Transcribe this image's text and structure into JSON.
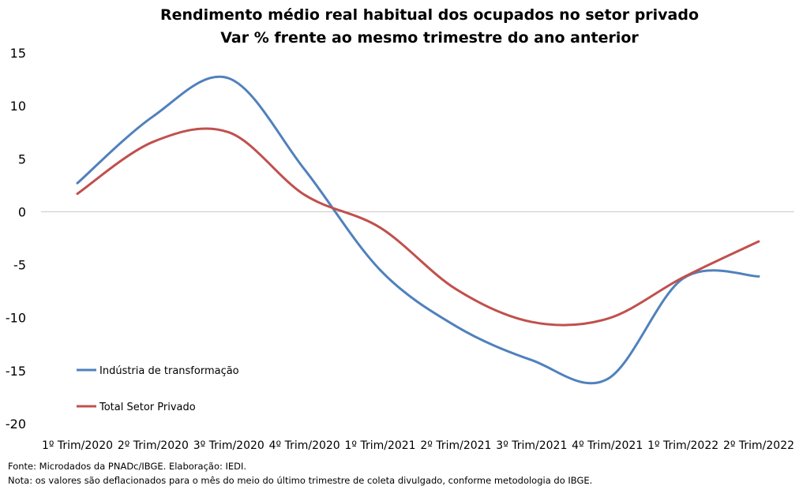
{
  "chart_data": {
    "type": "line",
    "title": "Rendimento médio real habitual dos ocupados no setor privado",
    "subtitle": "Var %  frente ao mesmo trimestre do ano anterior",
    "categories": [
      "1º Trim/2020",
      "2º Trim/2020",
      "3º Trim/2020",
      "4º Trim/2020",
      "1º Trim/2021",
      "2º Trim/2021",
      "3º Trim/2021",
      "4º Trim/2021",
      "1º Trim/2022",
      "2º Trim/2022"
    ],
    "y_ticks": [
      "15",
      "10",
      "5",
      "0",
      "-5",
      "-10",
      "-15",
      "-20"
    ],
    "ylim": [
      -20,
      15
    ],
    "grid": false,
    "legend_position": "lower-left",
    "series": [
      {
        "name": "Indústria de transformação",
        "color": "#4F81BD",
        "values": [
          2.7,
          9.0,
          12.6,
          4.0,
          -5.5,
          -10.8,
          -14.0,
          -15.8,
          -6.3,
          -6.1
        ]
      },
      {
        "name": "Total Setor Privado",
        "color": "#C0504D",
        "values": [
          1.7,
          6.6,
          7.5,
          1.6,
          -1.5,
          -7.3,
          -10.4,
          -10.1,
          -6.2,
          -2.8
        ]
      }
    ]
  },
  "footnotes": {
    "source": "Fonte: Microdados da PNADc/IBGE. Elaboração: IEDI.",
    "note": "Nota: os valores são deflacionados para o mês do meio do último trimestre de coleta divulgado, conforme metodologia do IBGE."
  }
}
